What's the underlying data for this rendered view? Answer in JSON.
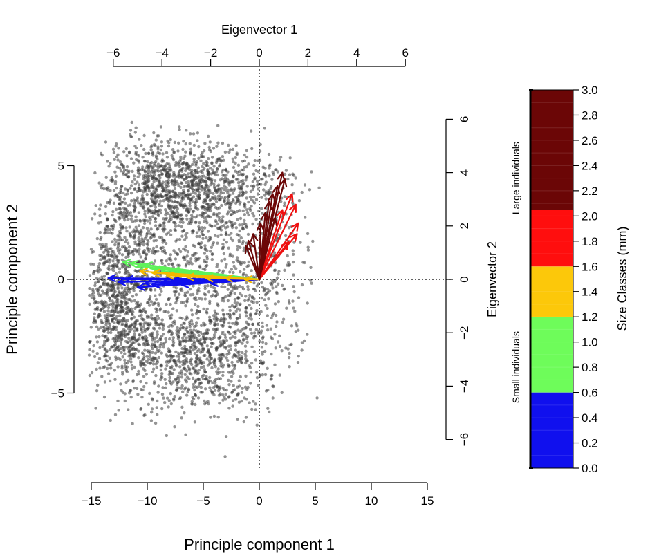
{
  "chart_data": {
    "type": "scatter",
    "xlabel": "Principle component 1",
    "ylabel": "Principle component 2",
    "xlim": [
      -15,
      15
    ],
    "ylim": [
      -8.5,
      7
    ],
    "x_ticks": [
      -15,
      -10,
      -5,
      0,
      5,
      10,
      15
    ],
    "x_tick_labels": [
      "−15",
      "−10",
      "−5",
      "0",
      "5",
      "10",
      "15"
    ],
    "y_ticks": [
      -5,
      0,
      5
    ],
    "y_tick_labels": [
      "−5",
      "0",
      "5"
    ],
    "top_axis": {
      "label": "Eigenvector 1",
      "lim": [
        -6,
        6
      ],
      "ticks": [
        -6,
        -4,
        -2,
        0,
        2,
        4,
        6
      ],
      "tick_labels": [
        "−6",
        "−4",
        "−2",
        "0",
        "2",
        "4",
        "6"
      ]
    },
    "right_axis": {
      "label": "Eigenvector 2",
      "lim": [
        -6,
        6
      ],
      "ticks": [
        -6,
        -4,
        -2,
        0,
        2,
        4,
        6
      ],
      "tick_labels": [
        "−6",
        "−4",
        "−2",
        "0",
        "2",
        "4",
        "6"
      ]
    },
    "reference_lines": {
      "x": 0,
      "y": 0
    },
    "point_color": "#3c3c3c",
    "point_clusters": [
      {
        "cx": -8.5,
        "cy": 4.2,
        "sx": 2.6,
        "sy": 1.0,
        "n": 700
      },
      {
        "cx": -3.0,
        "cy": 3.8,
        "sx": 2.6,
        "sy": 1.1,
        "n": 450
      },
      {
        "cx": -11.5,
        "cy": 1.5,
        "sx": 2.2,
        "sy": 1.8,
        "n": 450
      },
      {
        "cx": -13.0,
        "cy": -1.0,
        "sx": 1.5,
        "sy": 1.5,
        "n": 450
      },
      {
        "cx": -11.0,
        "cy": -2.5,
        "sx": 1.8,
        "sy": 1.3,
        "n": 350
      },
      {
        "cx": -6.0,
        "cy": -3.5,
        "sx": 2.6,
        "sy": 1.2,
        "n": 550
      },
      {
        "cx": -2.5,
        "cy": -2.5,
        "sx": 2.0,
        "sy": 1.6,
        "n": 350
      },
      {
        "cx": -5.5,
        "cy": 1.0,
        "sx": 3.0,
        "sy": 1.8,
        "n": 450
      },
      {
        "cx": 1.5,
        "cy": 0.5,
        "sx": 1.8,
        "sy": 2.6,
        "n": 200
      }
    ],
    "arrow_groups": [
      {
        "size_range": [
          0.0,
          0.6
        ],
        "color": "#1010ee",
        "tips": [
          [
            -6.2,
            0.05
          ],
          [
            -5.8,
            -0.1
          ],
          [
            -5.5,
            0.0
          ],
          [
            -5.0,
            -0.3
          ],
          [
            -4.7,
            -0.15
          ],
          [
            -4.4,
            -0.2
          ],
          [
            -4.0,
            -0.1
          ],
          [
            -3.6,
            -0.05
          ],
          [
            -3.2,
            -0.2
          ],
          [
            -2.8,
            0.0
          ],
          [
            -2.0,
            -0.15
          ]
        ]
      },
      {
        "size_range": [
          0.6,
          1.2
        ],
        "color": "#5ef25a",
        "tips": [
          [
            -5.6,
            0.65
          ],
          [
            -5.3,
            0.6
          ],
          [
            -5.0,
            0.5
          ],
          [
            -4.7,
            0.55
          ],
          [
            -4.4,
            0.4
          ],
          [
            -4.0,
            0.3
          ],
          [
            -3.6,
            0.35
          ],
          [
            -3.1,
            0.25
          ]
        ]
      },
      {
        "size_range": [
          1.2,
          1.6
        ],
        "color": "#f5b800",
        "tips": [
          [
            -4.9,
            0.3
          ],
          [
            -4.4,
            0.25
          ],
          [
            -3.8,
            0.15
          ],
          [
            -3.0,
            0.1
          ],
          [
            -2.2,
            0.05
          ],
          [
            -1.4,
            0.05
          ],
          [
            -0.6,
            0.0
          ]
        ]
      },
      {
        "size_range": [
          1.6,
          2.0
        ],
        "color": "#ee1010",
        "tips": [
          [
            1.35,
            3.2
          ],
          [
            1.5,
            2.8
          ],
          [
            1.6,
            2.1
          ],
          [
            1.55,
            1.7
          ],
          [
            1.2,
            1.4
          ],
          [
            0.95,
            2.6
          ]
        ]
      },
      {
        "size_range": [
          2.0,
          3.0
        ],
        "color": "#6b0606",
        "tips": [
          [
            0.95,
            4.0
          ],
          [
            1.05,
            3.75
          ],
          [
            0.75,
            3.5
          ],
          [
            0.55,
            3.2
          ],
          [
            0.4,
            2.9
          ],
          [
            0.25,
            2.5
          ],
          [
            0.05,
            2.1
          ],
          [
            -0.25,
            1.7
          ],
          [
            -0.45,
            1.45
          ],
          [
            -0.55,
            1.25
          ],
          [
            0.65,
            2.3
          ]
        ]
      }
    ],
    "colorbar": {
      "title": "Size Classes (mm)",
      "range": [
        0.0,
        3.0
      ],
      "ticks": [
        0.0,
        0.2,
        0.4,
        0.6,
        0.8,
        1.0,
        1.2,
        1.4,
        1.6,
        1.8,
        2.0,
        2.2,
        2.4,
        2.6,
        2.8,
        3.0
      ],
      "tick_labels": [
        "0.0",
        "0.2",
        "0.4",
        "0.6",
        "0.8",
        "1.0",
        "1.2",
        "1.4",
        "1.6",
        "1.8",
        "2.0",
        "2.2",
        "2.4",
        "2.6",
        "2.8",
        "3.0"
      ],
      "bands": [
        {
          "from": 0.0,
          "to": 0.6,
          "color": "#1010ee"
        },
        {
          "from": 0.6,
          "to": 1.2,
          "color": "#6efc5a"
        },
        {
          "from": 1.2,
          "to": 1.6,
          "color": "#fcc80a"
        },
        {
          "from": 1.6,
          "to": 2.05,
          "color": "#ff0e0e"
        },
        {
          "from": 2.05,
          "to": 3.0,
          "color": "#6b0606"
        }
      ],
      "group_labels": [
        {
          "text": "Large individuals",
          "from": 1.6,
          "to": 3.0
        },
        {
          "text": "Small individuals",
          "from": 0.0,
          "to": 1.6
        }
      ]
    }
  }
}
